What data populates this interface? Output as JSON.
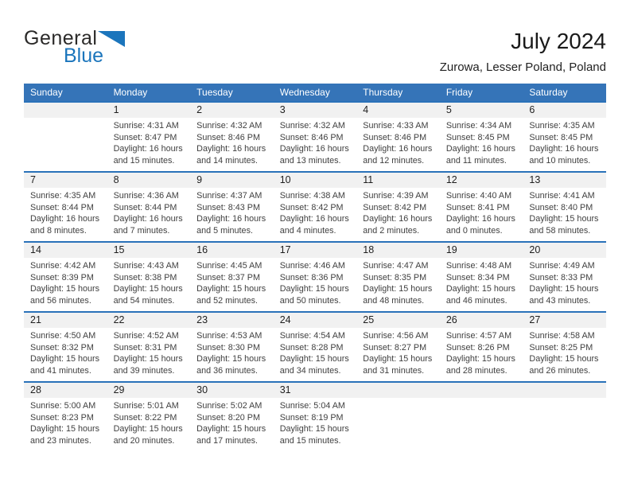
{
  "logo": {
    "general": "General",
    "blue": "Blue"
  },
  "header": {
    "month_year": "July 2024",
    "location": "Zurowa, Lesser Poland, Poland"
  },
  "colors": {
    "header_blue": "#3574b8",
    "week_divider_blue": "#2a72b9",
    "number_band_gray": "#f1f1f1",
    "logo_blue": "#1b75bc"
  },
  "calendar": {
    "day_headers": [
      "Sunday",
      "Monday",
      "Tuesday",
      "Wednesday",
      "Thursday",
      "Friday",
      "Saturday"
    ],
    "weeks": [
      [
        null,
        {
          "day": "1",
          "sunrise": "Sunrise: 4:31 AM",
          "sunset": "Sunset: 8:47 PM",
          "daylight": "Daylight: 16 hours and 15 minutes."
        },
        {
          "day": "2",
          "sunrise": "Sunrise: 4:32 AM",
          "sunset": "Sunset: 8:46 PM",
          "daylight": "Daylight: 16 hours and 14 minutes."
        },
        {
          "day": "3",
          "sunrise": "Sunrise: 4:32 AM",
          "sunset": "Sunset: 8:46 PM",
          "daylight": "Daylight: 16 hours and 13 minutes."
        },
        {
          "day": "4",
          "sunrise": "Sunrise: 4:33 AM",
          "sunset": "Sunset: 8:46 PM",
          "daylight": "Daylight: 16 hours and 12 minutes."
        },
        {
          "day": "5",
          "sunrise": "Sunrise: 4:34 AM",
          "sunset": "Sunset: 8:45 PM",
          "daylight": "Daylight: 16 hours and 11 minutes."
        },
        {
          "day": "6",
          "sunrise": "Sunrise: 4:35 AM",
          "sunset": "Sunset: 8:45 PM",
          "daylight": "Daylight: 16 hours and 10 minutes."
        }
      ],
      [
        {
          "day": "7",
          "sunrise": "Sunrise: 4:35 AM",
          "sunset": "Sunset: 8:44 PM",
          "daylight": "Daylight: 16 hours and 8 minutes."
        },
        {
          "day": "8",
          "sunrise": "Sunrise: 4:36 AM",
          "sunset": "Sunset: 8:44 PM",
          "daylight": "Daylight: 16 hours and 7 minutes."
        },
        {
          "day": "9",
          "sunrise": "Sunrise: 4:37 AM",
          "sunset": "Sunset: 8:43 PM",
          "daylight": "Daylight: 16 hours and 5 minutes."
        },
        {
          "day": "10",
          "sunrise": "Sunrise: 4:38 AM",
          "sunset": "Sunset: 8:42 PM",
          "daylight": "Daylight: 16 hours and 4 minutes."
        },
        {
          "day": "11",
          "sunrise": "Sunrise: 4:39 AM",
          "sunset": "Sunset: 8:42 PM",
          "daylight": "Daylight: 16 hours and 2 minutes."
        },
        {
          "day": "12",
          "sunrise": "Sunrise: 4:40 AM",
          "sunset": "Sunset: 8:41 PM",
          "daylight": "Daylight: 16 hours and 0 minutes."
        },
        {
          "day": "13",
          "sunrise": "Sunrise: 4:41 AM",
          "sunset": "Sunset: 8:40 PM",
          "daylight": "Daylight: 15 hours and 58 minutes."
        }
      ],
      [
        {
          "day": "14",
          "sunrise": "Sunrise: 4:42 AM",
          "sunset": "Sunset: 8:39 PM",
          "daylight": "Daylight: 15 hours and 56 minutes."
        },
        {
          "day": "15",
          "sunrise": "Sunrise: 4:43 AM",
          "sunset": "Sunset: 8:38 PM",
          "daylight": "Daylight: 15 hours and 54 minutes."
        },
        {
          "day": "16",
          "sunrise": "Sunrise: 4:45 AM",
          "sunset": "Sunset: 8:37 PM",
          "daylight": "Daylight: 15 hours and 52 minutes."
        },
        {
          "day": "17",
          "sunrise": "Sunrise: 4:46 AM",
          "sunset": "Sunset: 8:36 PM",
          "daylight": "Daylight: 15 hours and 50 minutes."
        },
        {
          "day": "18",
          "sunrise": "Sunrise: 4:47 AM",
          "sunset": "Sunset: 8:35 PM",
          "daylight": "Daylight: 15 hours and 48 minutes."
        },
        {
          "day": "19",
          "sunrise": "Sunrise: 4:48 AM",
          "sunset": "Sunset: 8:34 PM",
          "daylight": "Daylight: 15 hours and 46 minutes."
        },
        {
          "day": "20",
          "sunrise": "Sunrise: 4:49 AM",
          "sunset": "Sunset: 8:33 PM",
          "daylight": "Daylight: 15 hours and 43 minutes."
        }
      ],
      [
        {
          "day": "21",
          "sunrise": "Sunrise: 4:50 AM",
          "sunset": "Sunset: 8:32 PM",
          "daylight": "Daylight: 15 hours and 41 minutes."
        },
        {
          "day": "22",
          "sunrise": "Sunrise: 4:52 AM",
          "sunset": "Sunset: 8:31 PM",
          "daylight": "Daylight: 15 hours and 39 minutes."
        },
        {
          "day": "23",
          "sunrise": "Sunrise: 4:53 AM",
          "sunset": "Sunset: 8:30 PM",
          "daylight": "Daylight: 15 hours and 36 minutes."
        },
        {
          "day": "24",
          "sunrise": "Sunrise: 4:54 AM",
          "sunset": "Sunset: 8:28 PM",
          "daylight": "Daylight: 15 hours and 34 minutes."
        },
        {
          "day": "25",
          "sunrise": "Sunrise: 4:56 AM",
          "sunset": "Sunset: 8:27 PM",
          "daylight": "Daylight: 15 hours and 31 minutes."
        },
        {
          "day": "26",
          "sunrise": "Sunrise: 4:57 AM",
          "sunset": "Sunset: 8:26 PM",
          "daylight": "Daylight: 15 hours and 28 minutes."
        },
        {
          "day": "27",
          "sunrise": "Sunrise: 4:58 AM",
          "sunset": "Sunset: 8:25 PM",
          "daylight": "Daylight: 15 hours and 26 minutes."
        }
      ],
      [
        {
          "day": "28",
          "sunrise": "Sunrise: 5:00 AM",
          "sunset": "Sunset: 8:23 PM",
          "daylight": "Daylight: 15 hours and 23 minutes."
        },
        {
          "day": "29",
          "sunrise": "Sunrise: 5:01 AM",
          "sunset": "Sunset: 8:22 PM",
          "daylight": "Daylight: 15 hours and 20 minutes."
        },
        {
          "day": "30",
          "sunrise": "Sunrise: 5:02 AM",
          "sunset": "Sunset: 8:20 PM",
          "daylight": "Daylight: 15 hours and 17 minutes."
        },
        {
          "day": "31",
          "sunrise": "Sunrise: 5:04 AM",
          "sunset": "Sunset: 8:19 PM",
          "daylight": "Daylight: 15 hours and 15 minutes."
        },
        null,
        null,
        null
      ]
    ]
  }
}
